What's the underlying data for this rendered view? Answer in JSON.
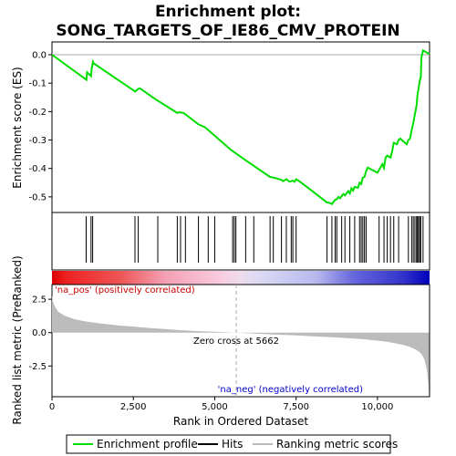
{
  "chart_data": [
    {
      "type": "line",
      "title_line1": "Enrichment plot:",
      "title_line2": "SONG_TARGETS_OF_IE86_CMV_PROTEIN",
      "ylabel": "Enrichment score (ES)",
      "xlim": [
        0,
        11600
      ],
      "ylim": [
        -0.555,
        0.045
      ],
      "yticks": [
        0.0,
        -0.1,
        -0.2,
        -0.3,
        -0.4,
        -0.5
      ],
      "ytick_labels": [
        "0.0",
        "-0.1",
        "-0.2",
        "-0.3",
        "-0.4",
        "-0.5"
      ],
      "line_color": "#00dd00",
      "es_curve": {
        "x": [
          0,
          1060,
          1080,
          1200,
          1220,
          1260,
          1280,
          2560,
          2600,
          2650,
          2700,
          3200,
          3300,
          3850,
          3900,
          4050,
          4500,
          4700,
          5000,
          5500,
          6000,
          6700,
          6800,
          7050,
          7100,
          7200,
          7300,
          7400,
          7450,
          7500,
          7600,
          8000,
          8450,
          8500,
          8600,
          8700,
          8750,
          8800,
          8850,
          8950,
          9000,
          9100,
          9150,
          9200,
          9250,
          9300,
          9400,
          9450,
          9500,
          9550,
          9600,
          9650,
          9700,
          10000,
          10050,
          10150,
          10200,
          10250,
          10300,
          10400,
          10450,
          10500,
          10600,
          10650,
          10700,
          10900,
          10950,
          11000,
          11050,
          11100,
          11150,
          11200,
          11230,
          11260,
          11300,
          11330,
          11350,
          11400,
          11450,
          11600
        ],
        "y": [
          0.0,
          -0.088,
          -0.062,
          -0.075,
          -0.048,
          -0.025,
          -0.03,
          -0.13,
          -0.125,
          -0.12,
          -0.118,
          -0.158,
          -0.165,
          -0.205,
          -0.202,
          -0.205,
          -0.245,
          -0.255,
          -0.285,
          -0.335,
          -0.375,
          -0.43,
          -0.432,
          -0.44,
          -0.445,
          -0.438,
          -0.447,
          -0.443,
          -0.447,
          -0.438,
          -0.445,
          -0.48,
          -0.52,
          -0.52,
          -0.525,
          -0.51,
          -0.508,
          -0.5,
          -0.505,
          -0.49,
          -0.495,
          -0.48,
          -0.488,
          -0.47,
          -0.478,
          -0.465,
          -0.468,
          -0.45,
          -0.455,
          -0.432,
          -0.43,
          -0.41,
          -0.397,
          -0.415,
          -0.405,
          -0.385,
          -0.398,
          -0.362,
          -0.355,
          -0.362,
          -0.34,
          -0.31,
          -0.315,
          -0.3,
          -0.295,
          -0.315,
          -0.3,
          -0.295,
          -0.265,
          -0.24,
          -0.21,
          -0.18,
          -0.14,
          -0.12,
          -0.09,
          -0.08,
          -0.01,
          0.015,
          0.012,
          0.002
        ]
      },
      "hits": [
        1050,
        1200,
        1250,
        2550,
        2650,
        3250,
        3850,
        3950,
        4100,
        4500,
        4800,
        5000,
        5550,
        5600,
        5650,
        5950,
        6200,
        6700,
        6800,
        7050,
        7200,
        7350,
        7400,
        7500,
        8450,
        8600,
        8700,
        8750,
        8900,
        9000,
        9150,
        9300,
        9450,
        9500,
        9550,
        9600,
        9650,
        10050,
        10200,
        10300,
        10400,
        10500,
        10650,
        10950,
        11050,
        11100,
        11150,
        11200,
        11230,
        11260,
        11300,
        11330,
        11400
      ]
    },
    {
      "type": "area",
      "ylabel": "Ranked list metric (PreRanked)",
      "xlabel": "Rank in Ordered Dataset",
      "xlim": [
        0,
        11600
      ],
      "ylim": [
        -4.8,
        3.6
      ],
      "yticks": [
        2.5,
        0.0,
        -2.5
      ],
      "ytick_labels": [
        "2.5",
        "0.0",
        "-2.5"
      ],
      "xticks": [
        0,
        2500,
        5000,
        7500,
        10000
      ],
      "xtick_labels": [
        "0",
        "2,500",
        "5,000",
        "7,500",
        "10,000"
      ],
      "zero_cross": 5662,
      "zero_cross_label": "Zero cross at 5662",
      "pos_label": "'na_pos' (positively correlated)",
      "neg_label": "'na_neg' (negatively correlated)",
      "pos_color": "#cc0000",
      "neg_color": "#0000cc",
      "metric_curve": {
        "x": [
          0,
          30,
          100,
          200,
          400,
          700,
          1000,
          1500,
          2000,
          2500,
          3000,
          3500,
          4000,
          4500,
          5000,
          5400,
          5662,
          6000,
          6500,
          7000,
          7500,
          8000,
          8500,
          9000,
          9500,
          10000,
          10300,
          10600,
          10800,
          11000,
          11100,
          11200,
          11300,
          11350,
          11400,
          11440,
          11480,
          11500,
          11530,
          11560,
          11580
        ],
        "y": [
          2.8,
          2.3,
          1.9,
          1.55,
          1.25,
          1.0,
          0.85,
          0.68,
          0.55,
          0.45,
          0.35,
          0.26,
          0.18,
          0.11,
          0.06,
          0.02,
          0.0,
          -0.05,
          -0.11,
          -0.16,
          -0.21,
          -0.27,
          -0.33,
          -0.4,
          -0.48,
          -0.6,
          -0.68,
          -0.82,
          -0.92,
          -1.08,
          -1.18,
          -1.3,
          -1.48,
          -1.6,
          -1.8,
          -2.0,
          -2.35,
          -2.6,
          -3.0,
          -3.8,
          -4.6
        ]
      }
    }
  ],
  "legend": {
    "items": [
      {
        "label": "Enrichment profile",
        "color": "#00dd00"
      },
      {
        "label": "Hits",
        "color": "#000000"
      },
      {
        "label": "Ranking metric scores",
        "color": "#bbbbbb"
      }
    ]
  }
}
